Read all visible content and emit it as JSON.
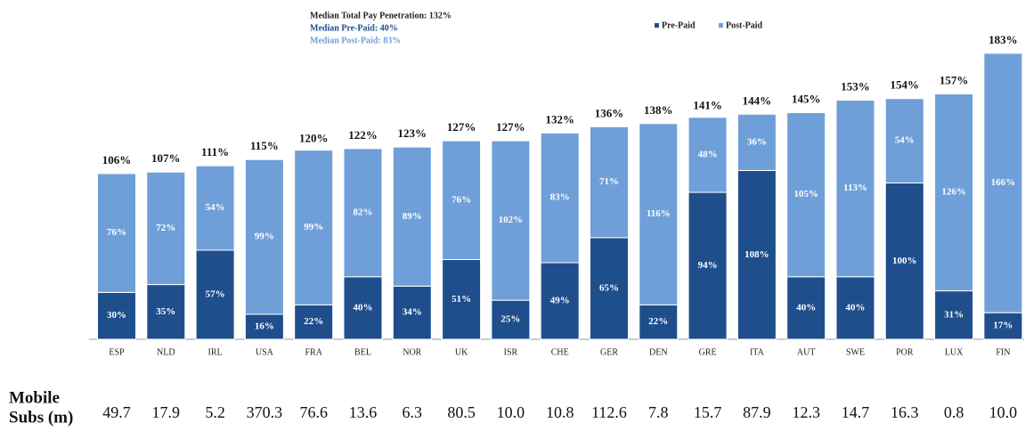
{
  "chart_data": {
    "type": "stacked_bar",
    "annotations": [
      "Median Total Pay Penetration: 132%",
      "Median Pre-Paid: 40%",
      "Median Post-Paid: 83%"
    ],
    "categories": [
      "ESP",
      "NLD",
      "IRL",
      "USA",
      "FRA",
      "BEL",
      "NOR",
      "UK",
      "ISR",
      "CHE",
      "GER",
      "DEN",
      "GRE",
      "ITA",
      "AUT",
      "SWE",
      "POR",
      "LUX",
      "FIN"
    ],
    "series": [
      {
        "name": "Pre-Paid",
        "color": "#1f4e8c",
        "values": [
          30,
          35,
          57,
          16,
          22,
          40,
          34,
          51,
          25,
          49,
          65,
          22,
          94,
          108,
          40,
          40,
          100,
          31,
          17
        ],
        "value_labels": [
          "30%",
          "35%",
          "57%",
          "16%",
          "22%",
          "40%",
          "34%",
          "51%",
          "25%",
          "49%",
          "65%",
          "22%",
          "94%",
          "108%",
          "40%",
          "40%",
          "100%",
          "31%",
          "17%"
        ]
      },
      {
        "name": "Post-Paid",
        "color": "#6f9fd8",
        "values": [
          76,
          72,
          54,
          99,
          99,
          82,
          89,
          76,
          102,
          83,
          71,
          116,
          48,
          36,
          105,
          113,
          54,
          126,
          166
        ],
        "value_labels": [
          "76%",
          "72%",
          "54%",
          "99%",
          "99%",
          "82%",
          "89%",
          "76%",
          "102%",
          "83%",
          "71%",
          "116%",
          "48%",
          "36%",
          "105%",
          "113%",
          "54%",
          "126%",
          "166%"
        ]
      }
    ],
    "totals": [
      106,
      107,
      111,
      115,
      120,
      122,
      123,
      127,
      127,
      132,
      136,
      138,
      141,
      144,
      145,
      153,
      154,
      157,
      183
    ],
    "total_labels": [
      "106%",
      "107%",
      "111%",
      "115%",
      "120%",
      "122%",
      "123%",
      "127%",
      "127%",
      "132%",
      "136%",
      "138%",
      "141%",
      "144%",
      "145%",
      "153%",
      "154%",
      "157%",
      "183%"
    ],
    "mobile_subs": {
      "label": [
        "Mobile",
        "Subs (m)"
      ],
      "values": [
        "49.7",
        "17.9",
        "5.2",
        "370.3",
        "76.6",
        "13.6",
        "6.3",
        "80.5",
        "10.0",
        "10.8",
        "112.6",
        "7.8",
        "15.7",
        "87.9",
        "12.3",
        "14.7",
        "16.3",
        "0.8",
        "10.0"
      ]
    }
  }
}
